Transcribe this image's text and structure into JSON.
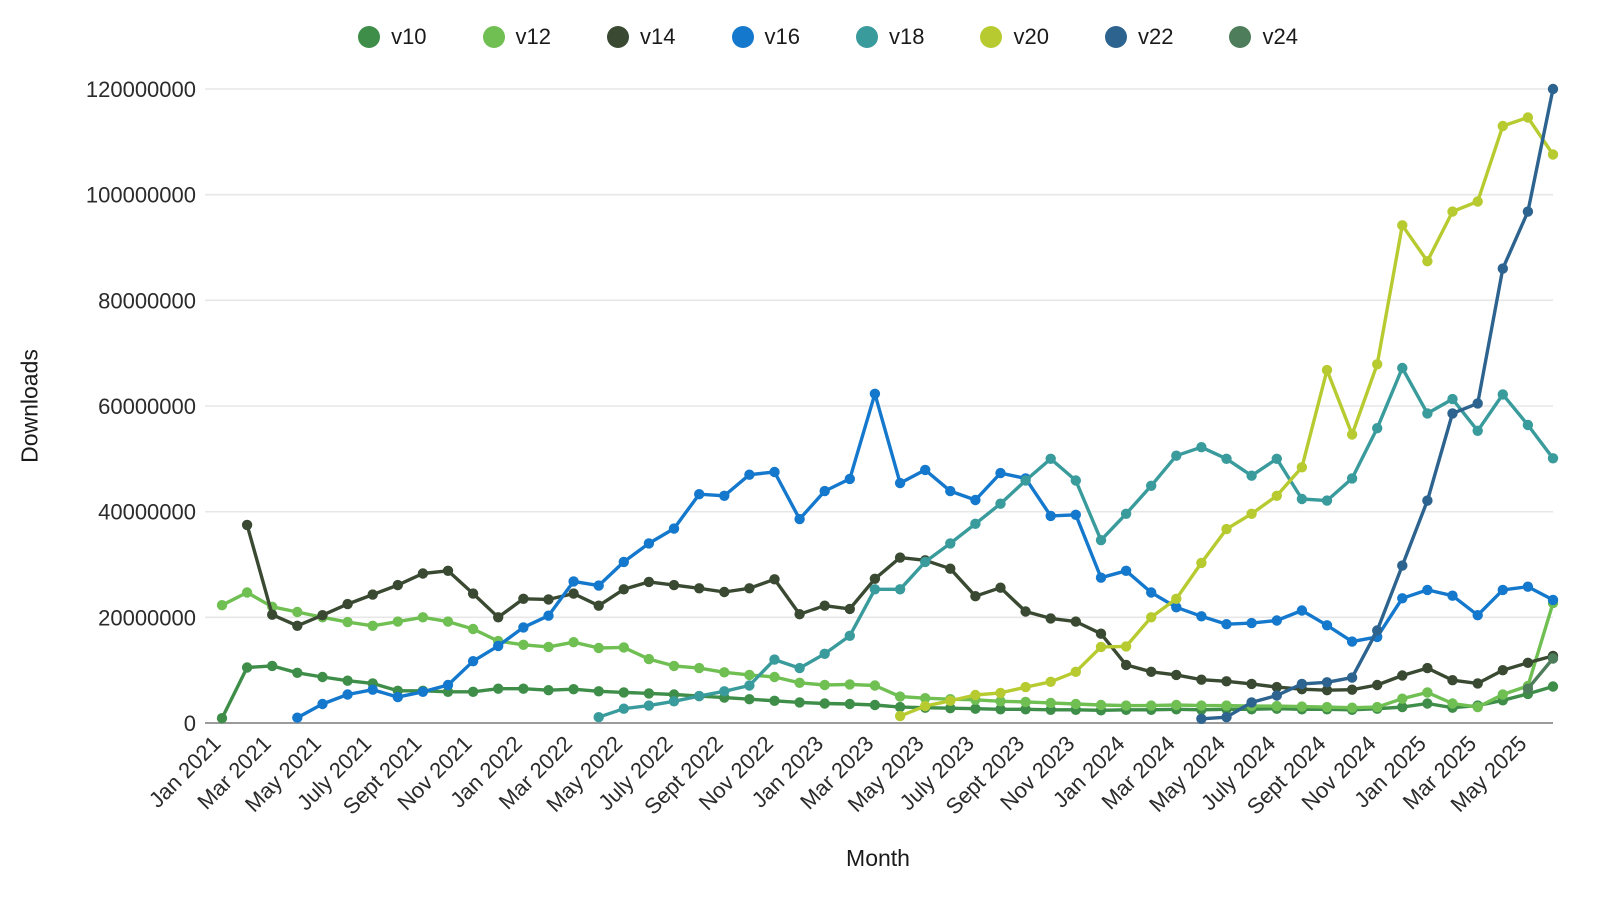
{
  "page": {
    "background": "#ffffff"
  },
  "axis_titles": {
    "y": "Downloads",
    "x": "Month"
  },
  "chart_data": {
    "type": "line",
    "title": "",
    "xlabel": "Month",
    "ylabel": "Downloads",
    "legend_position": "top-center",
    "grid": "horizontal",
    "ylim": [
      0,
      120000000
    ],
    "y_ticks": [
      0,
      20000000,
      40000000,
      60000000,
      80000000,
      100000000,
      120000000
    ],
    "x_tick_every": 2,
    "months": [
      "Jan 2021",
      "Feb 2021",
      "Mar 2021",
      "Apr 2021",
      "May 2021",
      "Jun 2021",
      "July 2021",
      "Aug 2021",
      "Sept 2021",
      "Oct 2021",
      "Nov 2021",
      "Dec 2021",
      "Jan 2022",
      "Feb 2022",
      "Mar 2022",
      "Apr 2022",
      "May 2022",
      "Jun 2022",
      "July 2022",
      "Aug 2022",
      "Sept 2022",
      "Oct 2022",
      "Nov 2022",
      "Dec 2022",
      "Jan 2023",
      "Feb 2023",
      "Mar 2023",
      "Apr 2023",
      "May 2023",
      "Jun 2023",
      "July 2023",
      "Aug 2023",
      "Sept 2023",
      "Oct 2023",
      "Nov 2023",
      "Dec 2023",
      "Jan 2024",
      "Feb 2024",
      "Mar 2024",
      "Apr 2024",
      "May 2024",
      "Jun 2024",
      "July 2024",
      "Aug 2024",
      "Sept 2024",
      "Oct 2024",
      "Nov 2024",
      "Dec 2024",
      "Jan 2025",
      "Feb 2025",
      "Mar 2025",
      "Apr 2025",
      "May 2025",
      "Jun 2025"
    ],
    "series": [
      {
        "name": "v10",
        "color": "#3e8e49",
        "values": [
          900000,
          10500000,
          10800000,
          9500000,
          8700000,
          8000000,
          7500000,
          6100000,
          6100000,
          5900000,
          5900000,
          6500000,
          6500000,
          6200000,
          6400000,
          6000000,
          5800000,
          5600000,
          5400000,
          5100000,
          4800000,
          4500000,
          4200000,
          3900000,
          3700000,
          3600000,
          3400000,
          3000000,
          2900000,
          2800000,
          2700000,
          2600000,
          2600000,
          2500000,
          2500000,
          2400000,
          2500000,
          2500000,
          2600000,
          2500000,
          2600000,
          2600000,
          2700000,
          2600000,
          2600000,
          2500000,
          2700000,
          3000000,
          3700000,
          2900000,
          3300000,
          4300000,
          5500000,
          6900000
        ]
      },
      {
        "name": "v12",
        "color": "#70bf53",
        "values": [
          22300000,
          24700000,
          22000000,
          21000000,
          20000000,
          19100000,
          18400000,
          19200000,
          20000000,
          19200000,
          17800000,
          15500000,
          14800000,
          14400000,
          15300000,
          14200000,
          14300000,
          12100000,
          10800000,
          10400000,
          9600000,
          9100000,
          8700000,
          7600000,
          7200000,
          7300000,
          7100000,
          5000000,
          4700000,
          4500000,
          4400000,
          4100000,
          4000000,
          3800000,
          3600000,
          3400000,
          3300000,
          3300000,
          3400000,
          3300000,
          3300000,
          3200000,
          3200000,
          3100000,
          3000000,
          2900000,
          3000000,
          4600000,
          5800000,
          3700000,
          3000000,
          5400000,
          7000000,
          22700000
        ]
      },
      {
        "name": "v14",
        "color": "#3a4a32",
        "values": [
          null,
          37500000,
          20500000,
          18400000,
          20400000,
          22500000,
          24300000,
          26100000,
          28300000,
          28800000,
          24500000,
          20000000,
          23500000,
          23400000,
          24500000,
          22200000,
          25300000,
          26700000,
          26100000,
          25500000,
          24800000,
          25500000,
          27200000,
          20600000,
          22200000,
          21600000,
          27300000,
          31300000,
          30800000,
          29200000,
          24000000,
          25600000,
          21100000,
          19800000,
          19200000,
          16900000,
          11000000,
          9700000,
          9100000,
          8200000,
          7900000,
          7400000,
          6800000,
          6400000,
          6200000,
          6300000,
          7200000,
          9000000,
          10400000,
          8100000,
          7500000,
          10000000,
          11400000,
          12700000
        ]
      },
      {
        "name": "v16",
        "color": "#1478cd",
        "values": [
          null,
          null,
          null,
          1000000,
          3600000,
          5400000,
          6300000,
          4900000,
          5900000,
          7200000,
          11700000,
          14600000,
          18100000,
          20300000,
          26800000,
          26000000,
          30500000,
          34000000,
          36800000,
          43300000,
          43000000,
          47000000,
          47500000,
          38600000,
          43900000,
          46200000,
          62300000,
          45400000,
          47900000,
          43900000,
          42200000,
          47300000,
          46300000,
          39200000,
          39400000,
          27500000,
          28800000,
          24700000,
          21900000,
          20200000,
          18700000,
          18900000,
          19400000,
          21300000,
          18500000,
          15400000,
          16300000,
          23600000,
          25200000,
          24100000,
          20400000,
          25200000,
          25800000,
          23300000
        ]
      },
      {
        "name": "v18",
        "color": "#3a9b9c",
        "values": [
          null,
          null,
          null,
          null,
          null,
          null,
          null,
          null,
          null,
          null,
          null,
          null,
          null,
          null,
          null,
          1100000,
          2700000,
          3300000,
          4100000,
          5100000,
          6000000,
          7100000,
          12000000,
          10400000,
          13100000,
          16500000,
          25300000,
          25300000,
          30500000,
          34000000,
          37700000,
          41500000,
          45900000,
          50000000,
          45900000,
          34600000,
          39600000,
          44900000,
          50600000,
          52200000,
          50000000,
          46800000,
          50000000,
          42400000,
          42100000,
          46300000,
          55800000,
          67200000,
          58600000,
          61300000,
          55300000,
          62200000,
          56400000,
          50100000
        ]
      },
      {
        "name": "v20",
        "color": "#b7cb31",
        "values": [
          null,
          null,
          null,
          null,
          null,
          null,
          null,
          null,
          null,
          null,
          null,
          null,
          null,
          null,
          null,
          null,
          null,
          null,
          null,
          null,
          null,
          null,
          null,
          null,
          null,
          null,
          null,
          1300000,
          3200000,
          4200000,
          5300000,
          5700000,
          6800000,
          7800000,
          9700000,
          14400000,
          14500000,
          20000000,
          23500000,
          30300000,
          36700000,
          39600000,
          43000000,
          48400000,
          66800000,
          54600000,
          67900000,
          94200000,
          87400000,
          96800000,
          98700000,
          113000000,
          114600000,
          107600000
        ]
      },
      {
        "name": "v22",
        "color": "#2d638f",
        "values": [
          null,
          null,
          null,
          null,
          null,
          null,
          null,
          null,
          null,
          null,
          null,
          null,
          null,
          null,
          null,
          null,
          null,
          null,
          null,
          null,
          null,
          null,
          null,
          null,
          null,
          null,
          null,
          null,
          null,
          null,
          null,
          null,
          null,
          null,
          null,
          null,
          null,
          null,
          null,
          800000,
          1100000,
          3900000,
          5200000,
          7400000,
          7700000,
          8600000,
          17500000,
          29800000,
          42100000,
          58600000,
          60500000,
          86000000,
          96800000,
          120000000
        ]
      },
      {
        "name": "v24",
        "color": "#4e7d5b",
        "values": [
          null,
          null,
          null,
          null,
          null,
          null,
          null,
          null,
          null,
          null,
          null,
          null,
          null,
          null,
          null,
          null,
          null,
          null,
          null,
          null,
          null,
          null,
          null,
          null,
          null,
          null,
          null,
          null,
          null,
          null,
          null,
          null,
          null,
          null,
          null,
          null,
          null,
          null,
          null,
          null,
          null,
          null,
          null,
          null,
          null,
          null,
          null,
          null,
          null,
          null,
          null,
          null,
          6500000,
          12200000
        ]
      }
    ]
  },
  "style": {
    "grid_color": "#e7e7e7",
    "axis_line_color": "#9b9b9b",
    "tick_label_color": "#2b2b2b"
  }
}
